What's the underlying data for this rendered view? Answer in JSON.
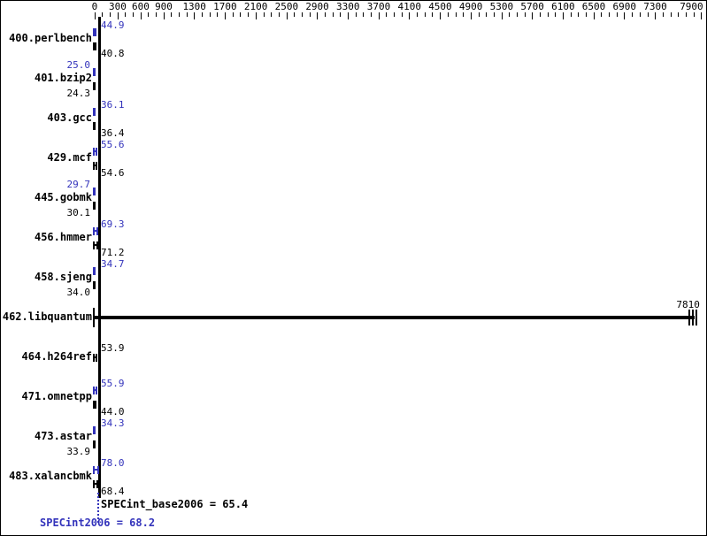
{
  "chart_data": {
    "type": "bar",
    "orientation": "horizontal",
    "title": "",
    "x_axis": {
      "position": "top",
      "min": 0,
      "max": 7900,
      "minor_tick_step": 100,
      "labeled_ticks": [
        0,
        300,
        600,
        900,
        1300,
        1700,
        2100,
        2500,
        2900,
        3300,
        3700,
        4100,
        4500,
        4900,
        5300,
        5700,
        6100,
        6500,
        6900,
        7300,
        7900
      ]
    },
    "colors": {
      "peak_blue": "#3333bb",
      "base_black": "#000000",
      "background": "#ffffff"
    },
    "benchmarks": [
      {
        "name": "400.perlbench",
        "peak": {
          "value": 44.9,
          "label": "44.9",
          "side": "right"
        },
        "base": {
          "value": 40.8,
          "label": "40.8",
          "side": "right"
        }
      },
      {
        "name": "401.bzip2",
        "peak": {
          "value": 25.0,
          "label": "25.0",
          "side": "left"
        },
        "base": {
          "value": 24.3,
          "label": "24.3",
          "side": "left"
        }
      },
      {
        "name": "403.gcc",
        "peak": {
          "value": 36.1,
          "label": "36.1",
          "side": "right"
        },
        "base": {
          "value": 36.4,
          "label": "36.4",
          "side": "right"
        }
      },
      {
        "name": "429.mcf",
        "peak": {
          "value": 55.6,
          "label": "55.6",
          "side": "right"
        },
        "base": {
          "value": 54.6,
          "label": "54.6",
          "side": "right"
        }
      },
      {
        "name": "445.gobmk",
        "peak": {
          "value": 29.7,
          "label": "29.7",
          "side": "left"
        },
        "base": {
          "value": 30.1,
          "label": "30.1",
          "side": "left"
        }
      },
      {
        "name": "456.hmmer",
        "peak": {
          "value": 69.3,
          "label": "69.3",
          "side": "right"
        },
        "base": {
          "value": 71.2,
          "label": "71.2",
          "side": "right"
        }
      },
      {
        "name": "458.sjeng",
        "peak": {
          "value": 34.7,
          "label": "34.7",
          "side": "right"
        },
        "base": {
          "value": 34.0,
          "label": "34.0",
          "side": "left"
        }
      },
      {
        "name": "462.libquantum",
        "merged_bar": true,
        "peak": {
          "value": 7810,
          "label": "7810",
          "side": "bar_end"
        },
        "base": {
          "value": 7810,
          "label": "7810",
          "side": "bar_end"
        }
      },
      {
        "name": "464.h264ref",
        "peak": null,
        "base": {
          "value": 53.9,
          "label": "53.9",
          "side": "right"
        }
      },
      {
        "name": "471.omnetpp",
        "peak": {
          "value": 55.9,
          "label": "55.9",
          "side": "right"
        },
        "base": {
          "value": 44.0,
          "label": "44.0",
          "side": "right"
        }
      },
      {
        "name": "473.astar",
        "peak": {
          "value": 34.3,
          "label": "34.3",
          "side": "right"
        },
        "base": {
          "value": 33.9,
          "label": "33.9",
          "side": "left"
        }
      },
      {
        "name": "483.xalancbmk",
        "peak": {
          "value": 78.0,
          "label": "78.0",
          "side": "right"
        },
        "base": {
          "value": 68.4,
          "label": "68.4",
          "side": "right"
        }
      }
    ],
    "summary": {
      "base": {
        "text": "SPECint_base2006 = 65.4",
        "value": 65.4
      },
      "peak": {
        "text": "SPECint2006 = 68.2",
        "value": 68.2
      }
    }
  }
}
